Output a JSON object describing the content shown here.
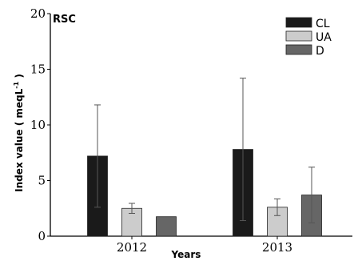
{
  "chart_data": {
    "type": "bar",
    "panel_label": "RSC",
    "xlabel": "Years",
    "ylabel": "Index value ( meqL",
    "ylabel_superscript": "-1",
    "ylabel_suffix": " )",
    "ylim": [
      0,
      20
    ],
    "yticks": [
      0,
      5,
      10,
      15,
      20
    ],
    "categories": [
      "2012",
      "2013"
    ],
    "series": [
      {
        "name": "CL",
        "color": "#1a1a1a",
        "values": [
          7.2,
          7.8
        ],
        "errors": [
          4.6,
          6.4
        ]
      },
      {
        "name": "UA",
        "color": "#cccccc",
        "values": [
          2.5,
          2.6
        ],
        "errors": [
          0.45,
          0.75
        ]
      },
      {
        "name": "D",
        "color": "#666666",
        "values": [
          1.75,
          3.7
        ],
        "errors": [
          null,
          2.5
        ]
      }
    ],
    "legend_position": "top-right",
    "grid": false
  }
}
